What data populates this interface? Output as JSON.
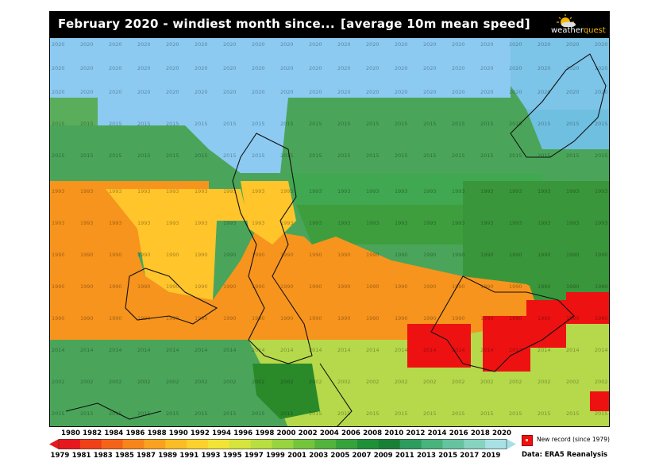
{
  "title": {
    "left": "February 2020 - windiest month since...",
    "right": "[average 10m mean speed]"
  },
  "logo": {
    "text_a": "weather",
    "text_b": "quest"
  },
  "legend": {
    "record_label": "New record (since 1979)"
  },
  "source": "Data: ERA5 Reanalysis",
  "colors": {
    "record": "#ee1111",
    "sea_blue": "#8ccaf2",
    "green_dark": "#2e8b2e",
    "green_mid": "#4caf50",
    "green_light": "#8fd14f",
    "yellow_green": "#c7e04a",
    "orange": "#f7941d",
    "yellow": "#ffd24a"
  },
  "colorbar": {
    "years_top": [
      "1980",
      "1982",
      "1984",
      "1986",
      "1988",
      "1990",
      "1992",
      "1994",
      "1996",
      "1998",
      "2000",
      "2002",
      "2004",
      "2006",
      "2008",
      "2010",
      "2012",
      "2014",
      "2016",
      "2018",
      "2020"
    ],
    "years_bottom": [
      "1979",
      "1981",
      "1983",
      "1985",
      "1987",
      "1989",
      "1991",
      "1993",
      "1995",
      "1997",
      "1999",
      "2001",
      "2003",
      "2005",
      "2007",
      "2009",
      "2011",
      "2013",
      "2015",
      "2017",
      "2019"
    ]
  },
  "map_regions": [
    {
      "label": "2020",
      "color": "#8ccaf2"
    },
    {
      "label": "2015",
      "color": "#4aa55a"
    },
    {
      "label": "2016",
      "color": "#5aad5a"
    },
    {
      "label": "2019",
      "color": "#7cc4e8"
    },
    {
      "label": "2018",
      "color": "#6fbfe0"
    },
    {
      "label": "1993",
      "color": "#f7941d"
    },
    {
      "label": "1997",
      "color": "#ffc52b"
    },
    {
      "label": "1990",
      "color": "#f7941d"
    },
    {
      "label": "2005",
      "color": "#3e9e3e"
    },
    {
      "label": "2007",
      "color": "#3a963a"
    },
    {
      "label": "2013",
      "color": "#40a850"
    },
    {
      "label": "2014",
      "color": "#4aa55a"
    },
    {
      "label": "2002",
      "color": "#b5d94a"
    },
    {
      "label": "2000",
      "color": "#2a8a2a"
    }
  ]
}
